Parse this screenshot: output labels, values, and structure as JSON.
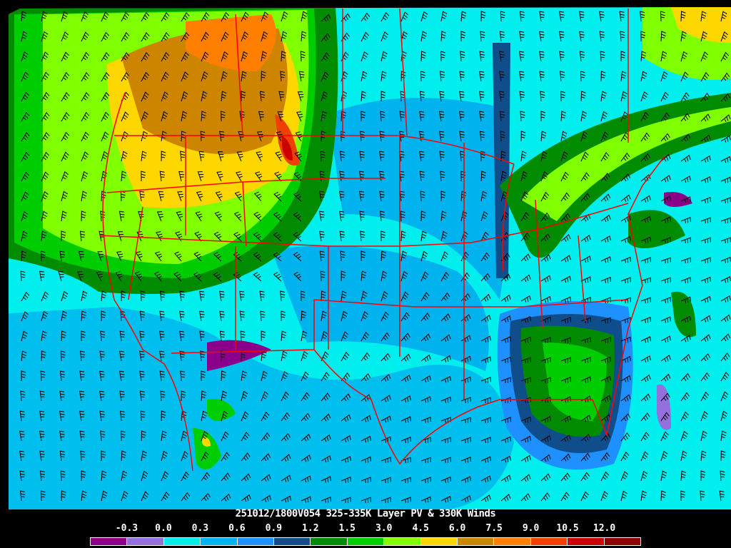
{
  "title": "251012/1800V054 325-335K Layer PV & 330K Winds",
  "legend": {
    "labels": [
      "-0.3",
      "0.0",
      "0.3",
      "0.6",
      "0.9",
      "1.2",
      "1.5",
      "3.0",
      "4.5",
      "6.0",
      "7.5",
      "9.0",
      "10.5",
      "12.0"
    ],
    "colors": [
      "#8b008b",
      "#9370db",
      "#00eeee",
      "#00b2ee",
      "#1e90ff",
      "#104e8b",
      "#008b00",
      "#00cd00",
      "#7fff00",
      "#ffd700",
      "#cd8500",
      "#ff7f00",
      "#ee4000",
      "#cd0000",
      "#8b0000"
    ]
  },
  "map": {
    "border_color": "#ff0000",
    "barb_color": "#000000"
  }
}
